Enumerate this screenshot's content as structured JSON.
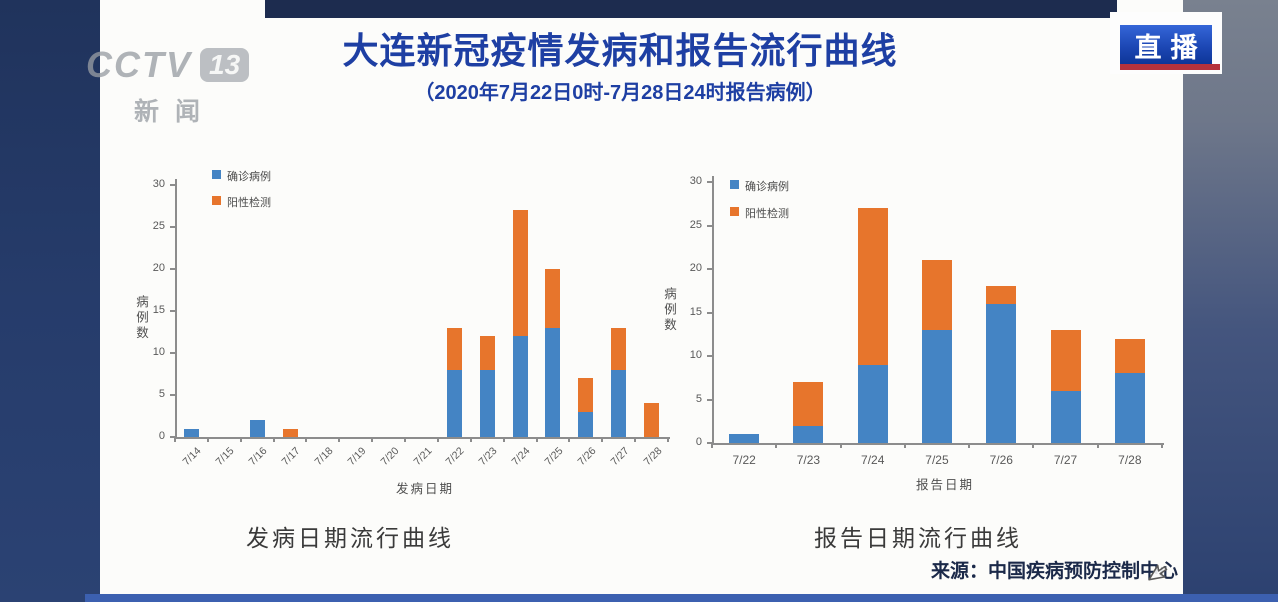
{
  "broadcast": {
    "logo": {
      "network": "CCTV",
      "channel": "13",
      "caption": "新闻"
    },
    "live_badge": "直播"
  },
  "slide": {
    "title": "大连新冠疫情发病和报告流行曲线",
    "subtitle": "（2020年7月22日0时-7月28日24时报告病例）",
    "source": "来源：中国疾病预防控制中心"
  },
  "colors": {
    "title_blue": "#1e3fa3",
    "bar_confirmed_blue": "#4484c4",
    "bar_positive_orange": "#e7752c",
    "live_badge_blue": "#1c47b4",
    "live_badge_red": "#b5323c",
    "frame_navy": "#263c6b"
  },
  "chart_data": [
    {
      "type": "bar",
      "stacked": true,
      "caption": "发病日期流行曲线",
      "categories": [
        "7/14",
        "7/15",
        "7/16",
        "7/17",
        "7/18",
        "7/19",
        "7/20",
        "7/21",
        "7/22",
        "7/23",
        "7/24",
        "7/25",
        "7/26",
        "7/27",
        "7/28"
      ],
      "series": [
        {
          "name": "确诊病例",
          "color": "#4484c4",
          "values": [
            1,
            0,
            2,
            0,
            0,
            0,
            0,
            0,
            8,
            8,
            12,
            13,
            3,
            8,
            0
          ]
        },
        {
          "name": "阳性检测",
          "color": "#e7752c",
          "values": [
            0,
            0,
            0,
            1,
            0,
            0,
            0,
            0,
            5,
            4,
            15,
            7,
            4,
            5,
            4
          ]
        }
      ],
      "totals": [
        1,
        0,
        2,
        1,
        0,
        0,
        0,
        0,
        13,
        12,
        27,
        20,
        7,
        13,
        4
      ],
      "xlabel": "发病日期",
      "ylabel": "病例数",
      "ylim": [
        0,
        30
      ],
      "yticks": [
        0,
        5,
        10,
        15,
        20,
        25,
        30
      ],
      "legend_position": "top-left",
      "x_tick_rotation": -45,
      "grid": false
    },
    {
      "type": "bar",
      "stacked": true,
      "caption": "报告日期流行曲线",
      "categories": [
        "7/22",
        "7/23",
        "7/24",
        "7/25",
        "7/26",
        "7/27",
        "7/28"
      ],
      "series": [
        {
          "name": "确诊病例",
          "color": "#4484c4",
          "values": [
            1,
            2,
            9,
            13,
            16,
            6,
            8
          ]
        },
        {
          "name": "阳性检测",
          "color": "#e7752c",
          "values": [
            0,
            5,
            18,
            8,
            2,
            7,
            4
          ]
        }
      ],
      "totals": [
        1,
        7,
        27,
        21,
        18,
        13,
        12
      ],
      "xlabel": "报告日期",
      "ylabel": "病例数",
      "ylim": [
        0,
        30
      ],
      "yticks": [
        0,
        5,
        10,
        15,
        20,
        25,
        30
      ],
      "legend_position": "top-left",
      "x_tick_rotation": 0,
      "grid": false
    }
  ]
}
